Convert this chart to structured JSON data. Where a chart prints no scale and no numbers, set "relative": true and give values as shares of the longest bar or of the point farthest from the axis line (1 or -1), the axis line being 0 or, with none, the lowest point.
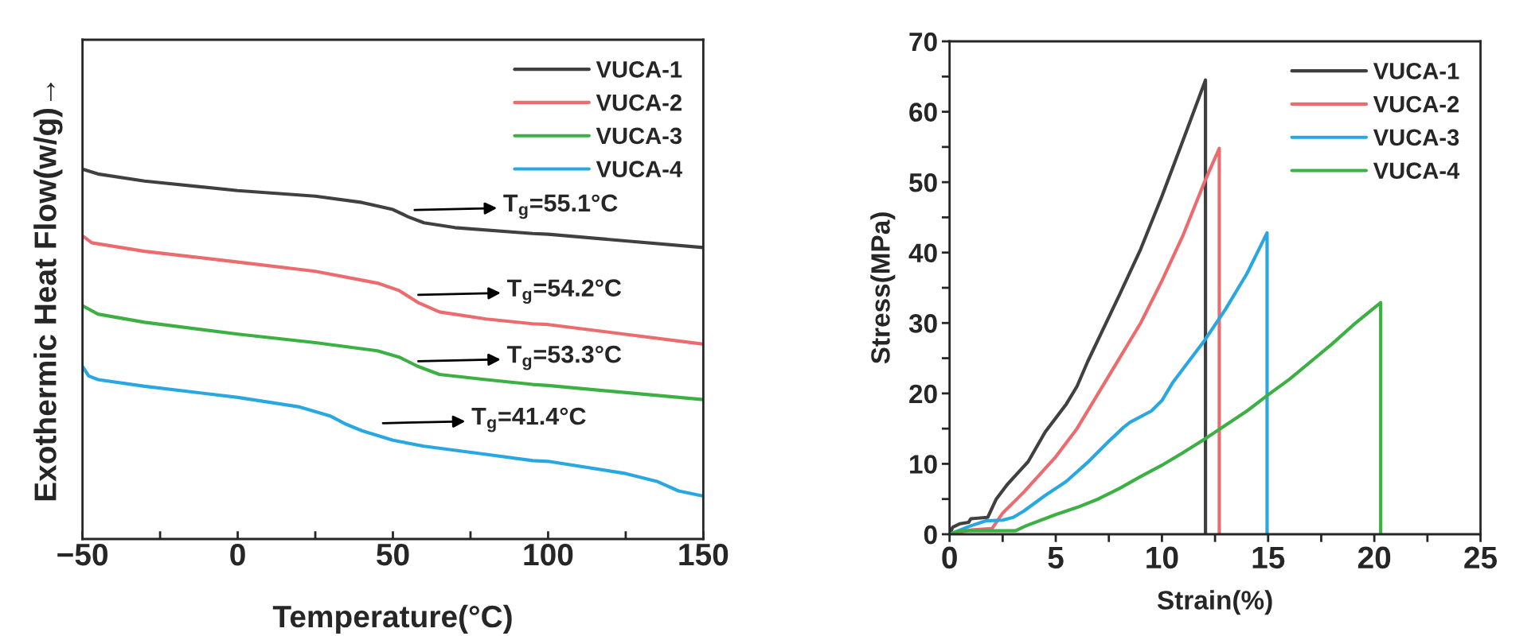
{
  "chart_data": [
    {
      "type": "line",
      "relative": true,
      "xlabel": "Temperature(°C)",
      "ylabel": "Exothermic Heat Flow(w/g)→",
      "xlim": [
        -50,
        150
      ],
      "xticks": [
        {
          "value": -50,
          "label": "−50"
        },
        {
          "value": -25,
          "label": null
        },
        0,
        {
          "value": 25,
          "label": null
        },
        50,
        {
          "value": 75,
          "label": null
        },
        100,
        {
          "value": 125,
          "label": null
        },
        150
      ],
      "tick_labels": "x",
      "legend": "top right",
      "grid": false,
      "series": [
        {
          "name": "VUCA-1",
          "color": "#404040",
          "x": [
            -50,
            -45,
            -30,
            0,
            25,
            40,
            50,
            55,
            60,
            70,
            95,
            100,
            150
          ],
          "values": [
            1.0,
            0.987,
            0.968,
            0.942,
            0.927,
            0.91,
            0.891,
            0.871,
            0.855,
            0.842,
            0.826,
            0.824,
            0.788
          ]
        },
        {
          "name": "VUCA-2",
          "color": "#eb6b6e",
          "x": [
            -50,
            -47,
            -30,
            0,
            25,
            45,
            52,
            58,
            65,
            80,
            95,
            100,
            150
          ],
          "values": [
            0.82,
            0.801,
            0.778,
            0.749,
            0.724,
            0.692,
            0.672,
            0.64,
            0.614,
            0.595,
            0.582,
            0.58,
            0.527
          ]
        },
        {
          "name": "VUCA-3",
          "color": "#3cb043",
          "x": [
            -50,
            -45,
            -30,
            0,
            25,
            45,
            52,
            58,
            65,
            80,
            95,
            100,
            150
          ],
          "values": [
            0.631,
            0.608,
            0.586,
            0.554,
            0.531,
            0.509,
            0.492,
            0.467,
            0.445,
            0.431,
            0.418,
            0.415,
            0.377
          ]
        },
        {
          "name": "VUCA-4",
          "color": "#29a7e1",
          "x": [
            -50,
            -48,
            -45,
            -30,
            0,
            20,
            30,
            35,
            40,
            50,
            60,
            80,
            95,
            100,
            125,
            135,
            142,
            150
          ],
          "values": [
            0.467,
            0.441,
            0.431,
            0.413,
            0.383,
            0.357,
            0.332,
            0.31,
            0.293,
            0.267,
            0.251,
            0.229,
            0.212,
            0.21,
            0.177,
            0.156,
            0.13,
            0.116
          ]
        }
      ],
      "annotations": [
        "T$_{g}$=55.1°C",
        "T$_{g}$=54.2°C",
        "T$_{g}$=53.3°C",
        "T$_{g}$=41.4°C"
      ]
    },
    {
      "type": "line",
      "xlabel": "Strain(%)",
      "ylabel": "Stress(MPa)",
      "xlim": [
        0,
        25
      ],
      "xticks": [
        0,
        {
          "value": 2.5,
          "label": null
        },
        5,
        {
          "value": 7.5,
          "label": null
        },
        10,
        {
          "value": 12.5,
          "label": null
        },
        15,
        {
          "value": 17.5,
          "label": null
        },
        20,
        {
          "value": 22.5,
          "label": null
        },
        25
      ],
      "ylim": [
        0,
        70
      ],
      "yticks": [
        0,
        {
          "value": 5,
          "label": null
        },
        10,
        {
          "value": 15,
          "label": null
        },
        20,
        {
          "value": 25,
          "label": null
        },
        30,
        {
          "value": 35,
          "label": null
        },
        40,
        {
          "value": 45,
          "label": null
        },
        50,
        {
          "value": 55,
          "label": null
        },
        60,
        {
          "value": 65,
          "label": null
        },
        70
      ],
      "legend": "top right",
      "grid": false,
      "series": [
        {
          "name": "VUCA-1",
          "color": "#404040",
          "x": [
            0,
            0.15,
            0.5,
            0.9,
            1.0,
            1.8,
            2.2,
            2.7,
            3.3,
            3.7,
            4.5,
            5.5,
            6,
            6.5,
            8,
            9,
            10,
            11,
            12.05,
            12.05
          ],
          "values": [
            0,
            1.0,
            1.5,
            1.7,
            2.2,
            2.4,
            5,
            7,
            9,
            10.3,
            14.5,
            18.5,
            21,
            24.5,
            34,
            40.5,
            48,
            56,
            64.5,
            0
          ]
        },
        {
          "name": "VUCA-2",
          "color": "#eb6b6e",
          "x": [
            0,
            1,
            2,
            2.5,
            3.5,
            5,
            6,
            7,
            8,
            9,
            10,
            11,
            12,
            12.7,
            12.7
          ],
          "values": [
            0,
            0.6,
            0.8,
            3,
            6,
            11,
            15,
            20,
            25,
            30,
            36,
            42.5,
            50,
            54.8,
            0
          ]
        },
        {
          "name": "VUCA-3",
          "color": "#29a7e1",
          "x": [
            0,
            1,
            1.7,
            2.5,
            3,
            3.5,
            4.5,
            5.5,
            6.5,
            7.5,
            8.2,
            8.5,
            9.5,
            10,
            10.5,
            11,
            12,
            13,
            14,
            14.95,
            14.95
          ],
          "values": [
            0,
            1.2,
            1.9,
            2,
            2.4,
            3.3,
            5.5,
            7.5,
            10.2,
            13.2,
            15.2,
            15.9,
            17.5,
            19,
            21.5,
            23.5,
            27.5,
            32,
            37,
            42.8,
            0
          ]
        },
        {
          "name": "VUCA-4",
          "color": "#3cb043",
          "x": [
            0,
            0.5,
            3.1,
            3.6,
            5,
            6,
            7,
            8,
            9,
            10,
            11,
            12,
            13,
            14,
            15,
            16,
            17,
            18,
            19,
            20.3,
            20.3
          ],
          "values": [
            0,
            0.5,
            0.5,
            1.2,
            2.8,
            3.8,
            5,
            6.5,
            8.2,
            9.8,
            11.6,
            13.5,
            15.5,
            17.5,
            19.8,
            22,
            24.5,
            27,
            29.7,
            32.9,
            0
          ]
        }
      ]
    }
  ]
}
